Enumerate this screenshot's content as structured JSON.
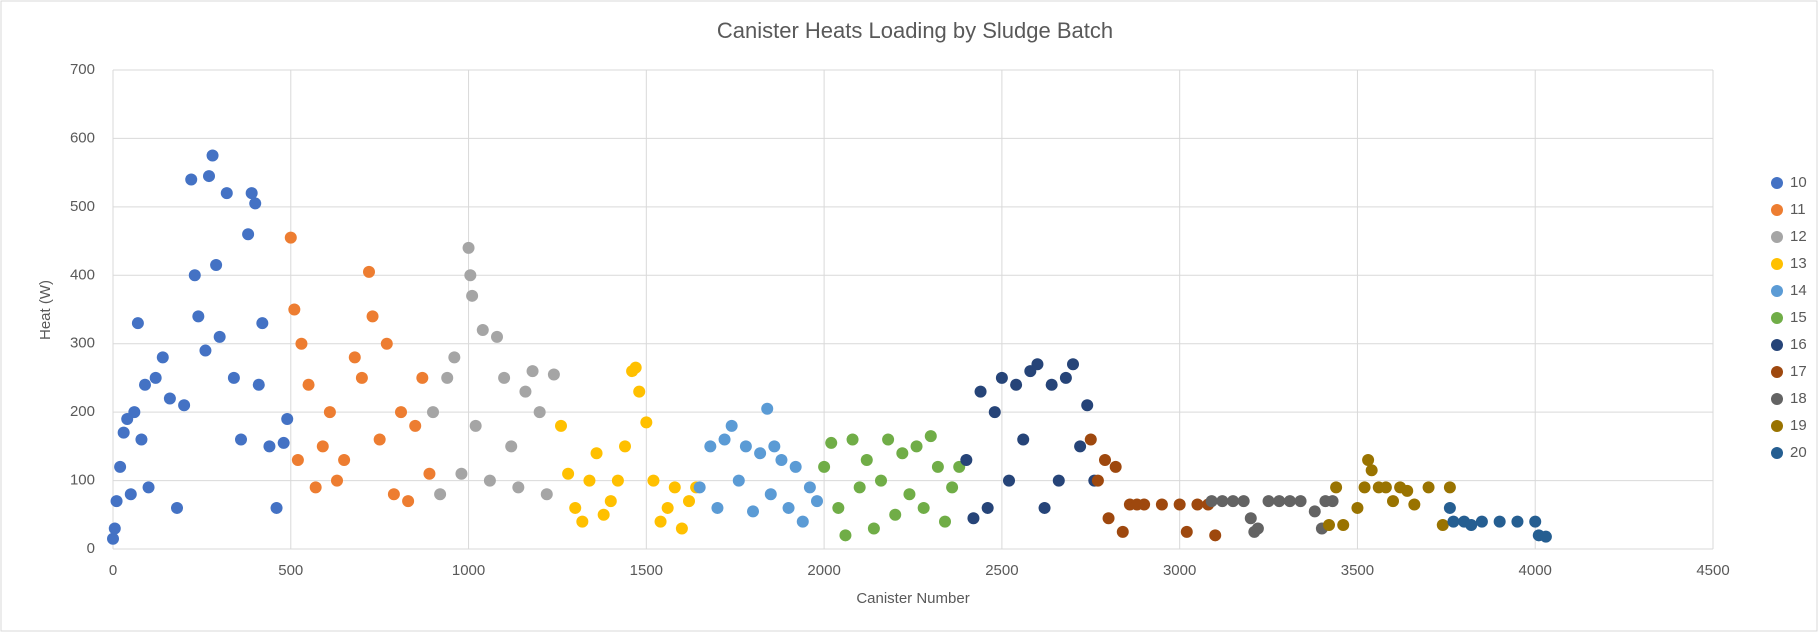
{
  "chart_data": {
    "type": "scatter",
    "title": "Canister Heats Loading by Sludge Batch",
    "x_label": "Canister Number",
    "y_label": "Heat (W)",
    "xlim": [
      0,
      4500
    ],
    "xticks": [
      0,
      500,
      1000,
      1500,
      2000,
      2500,
      3000,
      3500,
      4000,
      4500
    ],
    "ylim": [
      0,
      700
    ],
    "yticks": [
      0,
      100,
      200,
      300,
      400,
      500,
      600,
      700
    ],
    "grid": true,
    "legend": "right",
    "series": [
      {
        "name": "10",
        "color": "#4472c4",
        "x": [
          0,
          5,
          10,
          20,
          30,
          40,
          50,
          60,
          70,
          80,
          90,
          100,
          120,
          140,
          160,
          180,
          200,
          220,
          230,
          240,
          260,
          270,
          280,
          290,
          300,
          320,
          340,
          360,
          380,
          390,
          400,
          410,
          420,
          440,
          460,
          480,
          490
        ],
        "values": [
          15,
          30,
          70,
          120,
          170,
          190,
          80,
          200,
          330,
          160,
          240,
          90,
          250,
          280,
          220,
          60,
          210,
          540,
          400,
          340,
          290,
          545,
          575,
          415,
          310,
          520,
          250,
          160,
          460,
          520,
          505,
          240,
          330,
          150,
          60,
          155,
          190
        ]
      },
      {
        "name": "11",
        "color": "#ed7d31",
        "x": [
          500,
          510,
          520,
          530,
          550,
          570,
          590,
          610,
          630,
          650,
          680,
          700,
          720,
          730,
          750,
          770,
          790,
          810,
          830,
          850,
          870,
          890
        ],
        "values": [
          455,
          350,
          130,
          300,
          240,
          90,
          150,
          200,
          100,
          130,
          280,
          250,
          405,
          340,
          160,
          300,
          80,
          200,
          70,
          180,
          250,
          110
        ]
      },
      {
        "name": "12",
        "color": "#a5a5a5",
        "x": [
          900,
          920,
          940,
          960,
          980,
          1000,
          1005,
          1010,
          1020,
          1040,
          1060,
          1080,
          1100,
          1120,
          1140,
          1160,
          1180,
          1200,
          1220,
          1240
        ],
        "values": [
          200,
          80,
          250,
          280,
          110,
          440,
          400,
          370,
          180,
          320,
          100,
          310,
          250,
          150,
          90,
          230,
          260,
          200,
          80,
          255
        ]
      },
      {
        "name": "13",
        "color": "#ffc000",
        "x": [
          1260,
          1280,
          1300,
          1320,
          1340,
          1360,
          1380,
          1400,
          1420,
          1440,
          1460,
          1470,
          1480,
          1500,
          1520,
          1540,
          1560,
          1580,
          1600,
          1620,
          1640
        ],
        "values": [
          180,
          110,
          60,
          40,
          100,
          140,
          50,
          70,
          100,
          150,
          260,
          265,
          230,
          185,
          100,
          40,
          60,
          90,
          30,
          70,
          90
        ]
      },
      {
        "name": "14",
        "color": "#5b9bd5",
        "x": [
          1650,
          1680,
          1700,
          1720,
          1740,
          1760,
          1780,
          1800,
          1820,
          1840,
          1850,
          1860,
          1880,
          1900,
          1920,
          1940,
          1960,
          1980
        ],
        "values": [
          90,
          150,
          60,
          160,
          180,
          100,
          150,
          55,
          140,
          205,
          80,
          150,
          130,
          60,
          120,
          40,
          90,
          70
        ]
      },
      {
        "name": "15",
        "color": "#70ad47",
        "x": [
          2000,
          2020,
          2040,
          2060,
          2080,
          2100,
          2120,
          2140,
          2160,
          2180,
          2200,
          2220,
          2240,
          2260,
          2280,
          2300,
          2320,
          2340,
          2360,
          2380
        ],
        "values": [
          120,
          155,
          60,
          20,
          160,
          90,
          130,
          30,
          100,
          160,
          50,
          140,
          80,
          150,
          60,
          165,
          120,
          40,
          90,
          120
        ]
      },
      {
        "name": "16",
        "color": "#264478",
        "x": [
          2400,
          2420,
          2440,
          2460,
          2480,
          2500,
          2520,
          2540,
          2560,
          2580,
          2600,
          2620,
          2640,
          2660,
          2680,
          2700,
          2720,
          2740,
          2760
        ],
        "values": [
          130,
          45,
          230,
          60,
          200,
          250,
          100,
          240,
          160,
          260,
          270,
          60,
          240,
          100,
          250,
          270,
          150,
          210,
          100
        ]
      },
      {
        "name": "17",
        "color": "#9e480e",
        "x": [
          2750,
          2770,
          2790,
          2800,
          2820,
          2840,
          2860,
          2880,
          2900,
          2950,
          3000,
          3020,
          3050,
          3080,
          3100
        ],
        "values": [
          160,
          100,
          130,
          45,
          120,
          25,
          65,
          65,
          65,
          65,
          65,
          25,
          65,
          65,
          20
        ]
      },
      {
        "name": "18",
        "color": "#636363",
        "x": [
          3090,
          3120,
          3150,
          3180,
          3200,
          3210,
          3220,
          3250,
          3280,
          3310,
          3340,
          3380,
          3400,
          3410,
          3430
        ],
        "values": [
          70,
          70,
          70,
          70,
          45,
          25,
          30,
          70,
          70,
          70,
          70,
          55,
          30,
          70,
          70
        ]
      },
      {
        "name": "19",
        "color": "#997300",
        "x": [
          3420,
          3440,
          3460,
          3500,
          3520,
          3530,
          3540,
          3560,
          3580,
          3600,
          3620,
          3640,
          3660,
          3700,
          3740,
          3760
        ],
        "values": [
          35,
          90,
          35,
          60,
          90,
          130,
          115,
          90,
          90,
          70,
          90,
          85,
          65,
          90,
          35,
          90
        ]
      },
      {
        "name": "20",
        "color": "#255e91",
        "x": [
          3760,
          3770,
          3800,
          3820,
          3850,
          3900,
          3950,
          4000,
          4010,
          4030
        ],
        "values": [
          60,
          40,
          40,
          35,
          40,
          40,
          40,
          40,
          20,
          18
        ]
      }
    ]
  }
}
